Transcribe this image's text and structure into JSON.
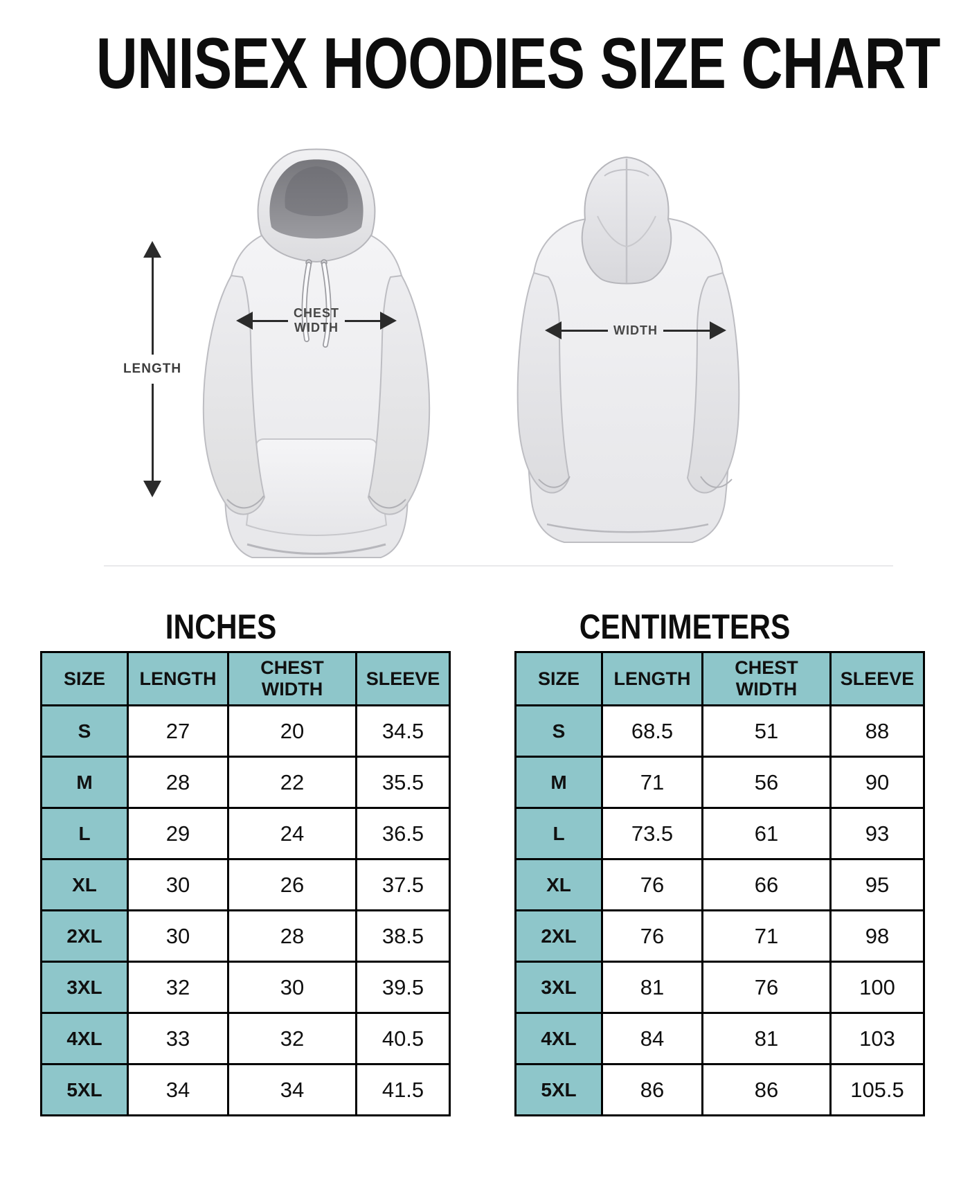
{
  "title": "UNISEX HOODIES SIZE CHART",
  "diagram": {
    "length_label": "LENGTH",
    "chest_width_line1": "CHEST",
    "chest_width_line2": "WIDTH",
    "back_width_label": "WIDTH"
  },
  "colors": {
    "accent_teal": "#8ec6ca",
    "table_border": "#000000",
    "arrow": "#2b2b2b",
    "diagram_label": "#3c3c3c"
  },
  "tables": [
    {
      "title": "INCHES",
      "columns": [
        "SIZE",
        "LENGTH",
        "CHEST WIDTH",
        "SLEEVE"
      ],
      "rows": [
        [
          "S",
          "27",
          "20",
          "34.5"
        ],
        [
          "M",
          "28",
          "22",
          "35.5"
        ],
        [
          "L",
          "29",
          "24",
          "36.5"
        ],
        [
          "XL",
          "30",
          "26",
          "37.5"
        ],
        [
          "2XL",
          "30",
          "28",
          "38.5"
        ],
        [
          "3XL",
          "32",
          "30",
          "39.5"
        ],
        [
          "4XL",
          "33",
          "32",
          "40.5"
        ],
        [
          "5XL",
          "34",
          "34",
          "41.5"
        ]
      ]
    },
    {
      "title": "CENTIMETERS",
      "columns": [
        "SIZE",
        "LENGTH",
        "CHEST WIDTH",
        "SLEEVE"
      ],
      "rows": [
        [
          "S",
          "68.5",
          "51",
          "88"
        ],
        [
          "M",
          "71",
          "56",
          "90"
        ],
        [
          "L",
          "73.5",
          "61",
          "93"
        ],
        [
          "XL",
          "76",
          "66",
          "95"
        ],
        [
          "2XL",
          "76",
          "71",
          "98"
        ],
        [
          "3XL",
          "81",
          "76",
          "100"
        ],
        [
          "4XL",
          "84",
          "81",
          "103"
        ],
        [
          "5XL",
          "86",
          "86",
          "105.5"
        ]
      ]
    }
  ]
}
